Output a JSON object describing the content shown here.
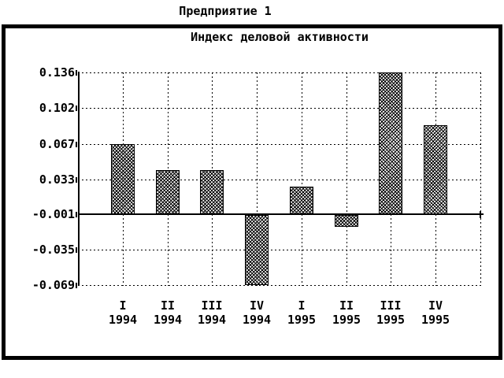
{
  "page": {
    "title": "Предприятие 1"
  },
  "chart_data": {
    "type": "bar",
    "title": "Индекс деловой активности",
    "categories": [
      {
        "quarter": "I",
        "year": "1994"
      },
      {
        "quarter": "II",
        "year": "1994"
      },
      {
        "quarter": "III",
        "year": "1994"
      },
      {
        "quarter": "IV",
        "year": "1994"
      },
      {
        "quarter": "I",
        "year": "1995"
      },
      {
        "quarter": "II",
        "year": "1995"
      },
      {
        "quarter": "III",
        "year": "1995"
      },
      {
        "quarter": "IV",
        "year": "1995"
      }
    ],
    "values": [
      0.067,
      0.042,
      0.042,
      -0.069,
      0.026,
      -0.013,
      0.136,
      0.085
    ],
    "y_ticks": [
      0.136,
      0.102,
      0.067,
      0.033,
      -0.001,
      -0.035,
      -0.069
    ],
    "y_tick_labels": [
      "0.136",
      "0.102",
      "0.067",
      "0.033",
      "-0.001",
      "-0.035",
      "-0.069"
    ],
    "baseline_value": -0.001,
    "ylim": [
      -0.069,
      0.136
    ],
    "xlabel": "",
    "ylabel": "",
    "grid": true,
    "legend": null,
    "colors": {
      "foreground": "#000000",
      "background": "#ffffff"
    }
  }
}
